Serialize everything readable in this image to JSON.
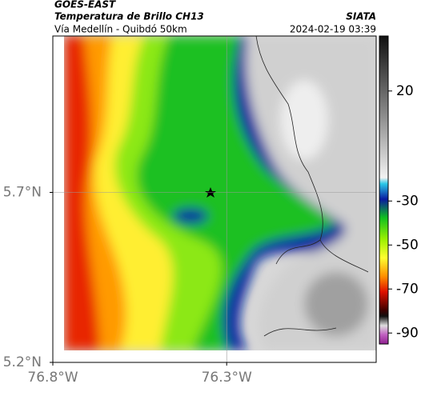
{
  "header": {
    "source": "GOES-EAST",
    "title": "Temperatura de Brillo CH13",
    "subtitle": "Vía Medellín - Quibdó 50km",
    "brand": "SIATA",
    "timestamp": "2024-02-19 03:39"
  },
  "map": {
    "xlim": [
      -76.8,
      -75.87
    ],
    "ylim": [
      5.2,
      6.16
    ],
    "xticks": [
      {
        "value": -76.8,
        "label": "76.8°W"
      },
      {
        "value": -76.3,
        "label": "76.3°W"
      }
    ],
    "yticks": [
      {
        "value": 5.7,
        "label": "5.7°N"
      },
      {
        "value": 5.2,
        "label": "5.2°N"
      }
    ],
    "grid": true
  },
  "colorbar": {
    "lim": [
      -95,
      45
    ],
    "ticks": [
      20,
      -30,
      -50,
      -70,
      -90
    ]
  }
}
